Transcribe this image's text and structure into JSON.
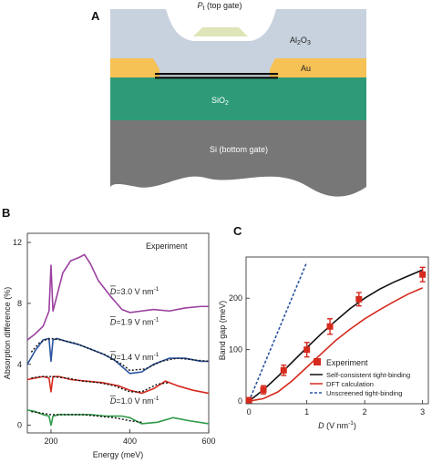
{
  "panel_labels": {
    "a": "A",
    "b": "B",
    "c": "C"
  },
  "device": {
    "top_gate_label": "P",
    "top_gate_sub": "t",
    "top_gate_suffix": " (top gate)",
    "oxide_label": "Al",
    "oxide_sub1": "2",
    "oxide_mid": "O",
    "oxide_sub2": "3",
    "contact_label": "Au",
    "substrate_oxide_label": "SiO",
    "substrate_oxide_sub": "2",
    "bottom_gate_label": "Si (bottom gate)",
    "colors": {
      "oxide": "#c8d2de",
      "gate": "#dfe5b8",
      "gold": "#f6c155",
      "sio2": "#2e9a78",
      "si": "#777777"
    }
  },
  "chart_data": [
    {
      "type": "line",
      "panel": "B",
      "annotation": "Experiment",
      "xlabel": "Energy (meV)",
      "ylabel": "Absorption difference (%)",
      "xlim": [
        140,
        600
      ],
      "ylim": [
        -0.5,
        12.6
      ],
      "x_ticks": [
        200,
        400,
        600
      ],
      "y_ticks": [
        0,
        4,
        8,
        12
      ],
      "series": [
        {
          "name": "D=3.0 V nm-1",
          "color": "#9b3f9e",
          "offset": 7.8,
          "x": [
            140,
            160,
            180,
            195,
            200,
            205,
            215,
            230,
            250,
            270,
            285,
            300,
            320,
            350,
            380,
            400,
            430,
            460,
            500,
            540,
            580,
            600
          ],
          "y": [
            5.6,
            6.0,
            6.5,
            7.5,
            10.5,
            7.5,
            8.5,
            10.0,
            10.8,
            11.0,
            11.2,
            10.6,
            9.5,
            8.5,
            7.6,
            7.4,
            7.5,
            7.6,
            7.5,
            7.7,
            7.8,
            7.8
          ]
        },
        {
          "name": "D=1.9 V nm-1",
          "color": "#2a53a0",
          "offset": 4.2,
          "x": [
            140,
            160,
            180,
            195,
            200,
            205,
            215,
            240,
            270,
            300,
            330,
            360,
            400,
            430,
            460,
            500,
            540,
            580,
            600
          ],
          "y": [
            4.0,
            4.9,
            5.6,
            5.7,
            4.2,
            5.6,
            5.7,
            5.5,
            5.3,
            5.0,
            4.7,
            4.3,
            3.4,
            3.5,
            4.0,
            4.4,
            4.4,
            4.2,
            4.2
          ]
        },
        {
          "name": "D=1.4 V nm-1",
          "color": "#d62a1e",
          "offset": 2.1,
          "x": [
            140,
            160,
            180,
            195,
            200,
            205,
            220,
            250,
            290,
            330,
            370,
            400,
            430,
            460,
            490,
            520,
            560,
            600
          ],
          "y": [
            3.0,
            3.1,
            3.2,
            3.1,
            2.2,
            3.2,
            3.2,
            3.0,
            2.9,
            2.8,
            2.6,
            2.3,
            2.1,
            2.4,
            2.9,
            2.6,
            2.3,
            2.1
          ]
        },
        {
          "name": "D=1.0 V nm-1",
          "color": "#2f9a48",
          "offset": 0.0,
          "x": [
            140,
            160,
            180,
            195,
            200,
            205,
            220,
            260,
            300,
            340,
            380,
            400,
            430,
            470,
            510,
            550,
            600
          ],
          "y": [
            1.0,
            0.9,
            0.7,
            0.6,
            0.0,
            0.6,
            0.7,
            0.7,
            0.7,
            0.6,
            0.6,
            0.5,
            0.1,
            0.2,
            0.5,
            0.3,
            0.1
          ]
        }
      ],
      "fits": [
        {
          "x": [
            150,
            170,
            185,
            200,
            225,
            260,
            300,
            340,
            380,
            400,
            440,
            480,
            520,
            560,
            600
          ],
          "y": [
            4.8,
            5.4,
            5.6,
            5.7,
            5.6,
            5.4,
            5.0,
            4.6,
            4.0,
            3.6,
            3.7,
            4.2,
            4.4,
            4.3,
            4.2
          ]
        },
        {
          "x": [
            150,
            175,
            200,
            240,
            280,
            320,
            360,
            400,
            430,
            470,
            500
          ],
          "y": [
            3.1,
            3.2,
            3.2,
            3.1,
            2.9,
            2.8,
            2.6,
            2.2,
            2.2,
            2.7,
            2.8
          ]
        },
        {
          "x": [
            150,
            175,
            200,
            240,
            280,
            320,
            360,
            400,
            430
          ],
          "y": [
            0.9,
            0.8,
            0.7,
            0.7,
            0.7,
            0.6,
            0.5,
            0.3,
            0.2
          ]
        }
      ],
      "labels": [
        {
          "text": "=3.0 V nm",
          "sup": "-1",
          "at": [
            350,
            8.6
          ]
        },
        {
          "text": "=1.9 V nm",
          "sup": "-1",
          "at": [
            350,
            6.6
          ]
        },
        {
          "text": "=1.4 V nm",
          "sup": "-1",
          "at": [
            350,
            4.3
          ]
        },
        {
          "text": "=1.0 V nm",
          "sup": "-1",
          "at": [
            350,
            1.4
          ]
        }
      ]
    },
    {
      "type": "scatter",
      "panel": "C",
      "xlabel": "D (V nm",
      "xlabel_sup": "-1",
      "xlabel_suffix": ")",
      "ylabel": "Band gap (meV)",
      "xlim": [
        -0.05,
        3.1
      ],
      "ylim": [
        -5,
        280
      ],
      "x_ticks": [
        0,
        1,
        2,
        3
      ],
      "y_ticks": [
        0,
        100,
        200
      ],
      "series": [
        {
          "name": "Experiment",
          "color": "#d62a1e",
          "x": [
            0,
            0.25,
            0.6,
            1.0,
            1.4,
            1.9,
            3.0
          ],
          "y": [
            2,
            22,
            60,
            100,
            145,
            198,
            246
          ],
          "err": [
            4,
            8,
            10,
            14,
            15,
            13,
            14
          ]
        },
        {
          "name": "Self-consistent tight-binding",
          "color": "#111111",
          "x": [
            0,
            0.25,
            0.5,
            0.75,
            1.0,
            1.25,
            1.5,
            1.75,
            2.0,
            2.25,
            2.5,
            2.75,
            3.0
          ],
          "y": [
            0,
            22,
            48,
            76,
            104,
            131,
            156,
            180,
            200,
            217,
            231,
            243,
            255
          ]
        },
        {
          "name": "DFT calculation",
          "color": "#d62a1e",
          "x": [
            0,
            0.25,
            0.5,
            0.75,
            1.0,
            1.25,
            1.5,
            1.75,
            2.0,
            2.25,
            2.5,
            2.75,
            3.0
          ],
          "y": [
            0,
            5,
            18,
            40,
            66,
            92,
            118,
            140,
            160,
            177,
            193,
            208,
            220
          ]
        },
        {
          "name": "Unscreened tight-binding",
          "color": "#2a53a0",
          "dash": true,
          "x": [
            0,
            1.0
          ],
          "y": [
            0,
            270
          ]
        }
      ]
    }
  ]
}
